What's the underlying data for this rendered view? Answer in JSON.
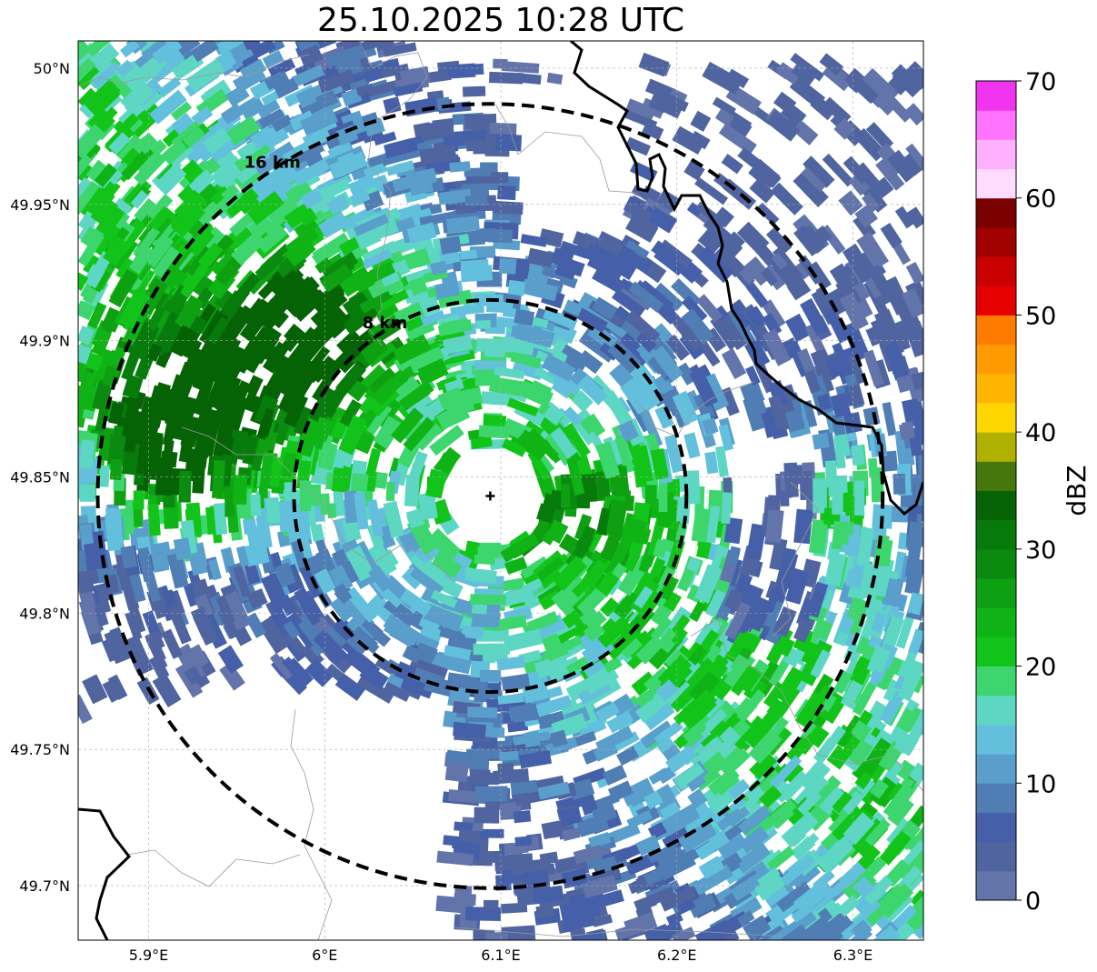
{
  "title": "25.10.2025 10:28 UTC",
  "map": {
    "lon_range": [
      5.86,
      6.34
    ],
    "lat_range": [
      49.68,
      50.01
    ],
    "radar_center": {
      "lon": 6.094,
      "lat": 49.843
    },
    "x_ticks": [
      {
        "value": 5.9,
        "label": "5.9°E"
      },
      {
        "value": 6.0,
        "label": "6°E"
      },
      {
        "value": 6.1,
        "label": "6.1°E"
      },
      {
        "value": 6.2,
        "label": "6.2°E"
      },
      {
        "value": 6.3,
        "label": "6.3°E"
      }
    ],
    "y_ticks": [
      {
        "value": 50.0,
        "label": "50°N"
      },
      {
        "value": 49.95,
        "label": "49.95°N"
      },
      {
        "value": 49.9,
        "label": "49.9°N"
      },
      {
        "value": 49.85,
        "label": "49.85°N"
      },
      {
        "value": 49.8,
        "label": "49.8°N"
      },
      {
        "value": 49.75,
        "label": "49.75°N"
      },
      {
        "value": 49.7,
        "label": "49.7°N"
      }
    ],
    "range_rings": [
      {
        "radius_km": 8,
        "label": "8 km"
      },
      {
        "radius_km": 16,
        "label": "16 km"
      }
    ],
    "gridlines": true
  },
  "colorbar": {
    "title": "dBZ",
    "min": 0,
    "max": 70,
    "step": 2.5,
    "tick_labels": [
      "0",
      "10",
      "20",
      "30",
      "40",
      "50",
      "60",
      "70"
    ],
    "colors": [
      "#6274aa",
      "#5064a0",
      "#4560a8",
      "#4f7db4",
      "#5a9ecb",
      "#63c0dc",
      "#5ed6c4",
      "#3dd66e",
      "#12c41a",
      "#10b316",
      "#0e9f12",
      "#0b8a10",
      "#077a0c",
      "#056306",
      "#45770a",
      "#b0b000",
      "#ffd700",
      "#ffb400",
      "#ff9a00",
      "#ff7b00",
      "#e60000",
      "#c80000",
      "#a00000",
      "#7a0000",
      "#ffdcff",
      "#ffb1ff",
      "#ff73ff",
      "#f034f0"
    ]
  },
  "echo_seed": 20251025
}
